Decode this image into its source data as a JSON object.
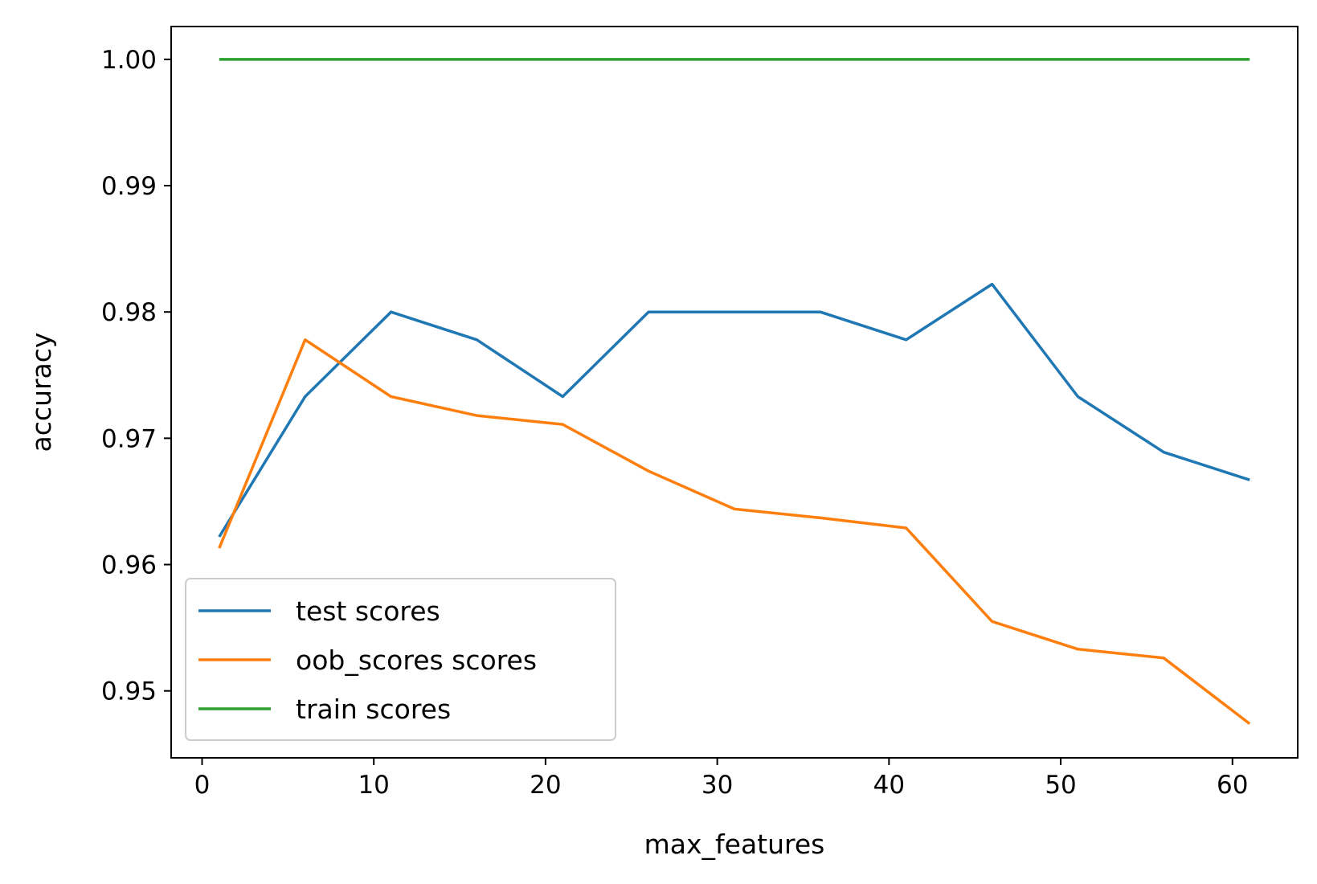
{
  "chart_data": {
    "type": "line",
    "title": "",
    "xlabel": "max_features",
    "ylabel": "accuracy",
    "x": [
      1,
      6,
      11,
      16,
      21,
      26,
      31,
      36,
      41,
      46,
      51,
      56,
      61
    ],
    "xlim": [
      -1.8,
      63.8
    ],
    "ylim": [
      0.9447,
      1.0026
    ],
    "xticks": [
      0,
      10,
      20,
      30,
      40,
      50,
      60
    ],
    "xtick_labels": [
      "0",
      "10",
      "20",
      "30",
      "40",
      "50",
      "60"
    ],
    "yticks": [
      0.95,
      0.96,
      0.97,
      0.98,
      0.99,
      1.0
    ],
    "ytick_labels": [
      "0.95",
      "0.96",
      "0.97",
      "0.98",
      "0.99",
      "1.00"
    ],
    "grid": false,
    "legend_position": "lower-left",
    "series": [
      {
        "name": "test scores",
        "color": "#1f77b4",
        "values": [
          0.9622,
          0.9733,
          0.98,
          0.9778,
          0.9733,
          0.98,
          0.98,
          0.98,
          0.9778,
          0.9822,
          0.9733,
          0.9689,
          0.9667
        ]
      },
      {
        "name": "oob_scores scores",
        "color": "#ff7f0e",
        "values": [
          0.9613,
          0.9778,
          0.9733,
          0.9718,
          0.9711,
          0.9674,
          0.9644,
          0.9637,
          0.9629,
          0.9555,
          0.9533,
          0.9526,
          0.9474
        ]
      },
      {
        "name": "train scores",
        "color": "#2ca02c",
        "values": [
          1.0,
          1.0,
          1.0,
          1.0,
          1.0,
          1.0,
          1.0,
          1.0,
          1.0,
          1.0,
          1.0,
          1.0,
          1.0
        ]
      }
    ]
  }
}
